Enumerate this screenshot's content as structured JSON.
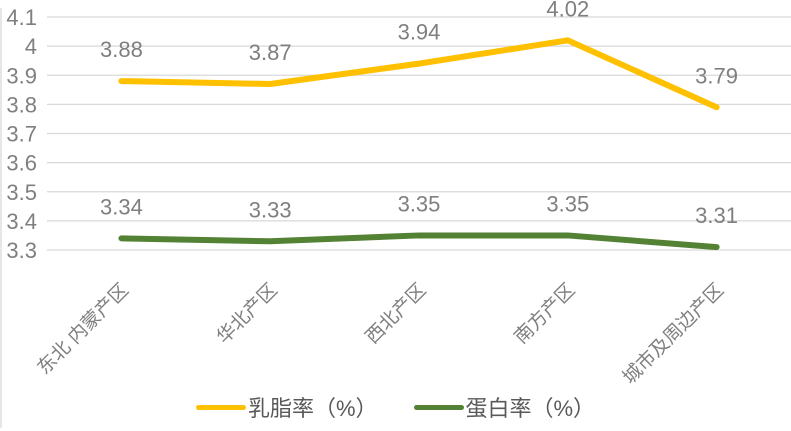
{
  "chart_data": {
    "type": "line",
    "title": "",
    "xlabel": "",
    "ylabel": "",
    "categories": [
      "东北 内蒙产区",
      "华北产区",
      "西北产区",
      "南方产区",
      "城市及周边产区"
    ],
    "series": [
      {
        "id": "milk-fat-rate",
        "name": "乳脂率（%）",
        "color": "#FFC000",
        "values": [
          3.88,
          3.87,
          3.94,
          4.02,
          3.79
        ],
        "labels": [
          "3.88",
          "3.87",
          "3.94",
          "4.02",
          "3.79"
        ]
      },
      {
        "id": "protein-rate",
        "name": "蛋白率（%）",
        "color": "#548235",
        "values": [
          3.34,
          3.33,
          3.35,
          3.35,
          3.31
        ],
        "labels": [
          "3.34",
          "3.33",
          "3.35",
          "3.35",
          "3.31"
        ]
      }
    ],
    "ylim": [
      3.3,
      4.1
    ],
    "ytick_step": 0.1,
    "ytick_labels": [
      "3.3",
      "3.4",
      "3.5",
      "3.6",
      "3.7",
      "3.8",
      "3.9",
      "4",
      "4.1"
    ],
    "grid": true,
    "data_labels": true,
    "legend_position": "bottom",
    "colors": {
      "gridline": "#D9D9D9",
      "border": "#D9D9D9",
      "axis_text": "#7F7F7F",
      "data_label_text": "#7F7F7F",
      "legend_text": "#595959",
      "background": "#FFFFFF"
    }
  }
}
